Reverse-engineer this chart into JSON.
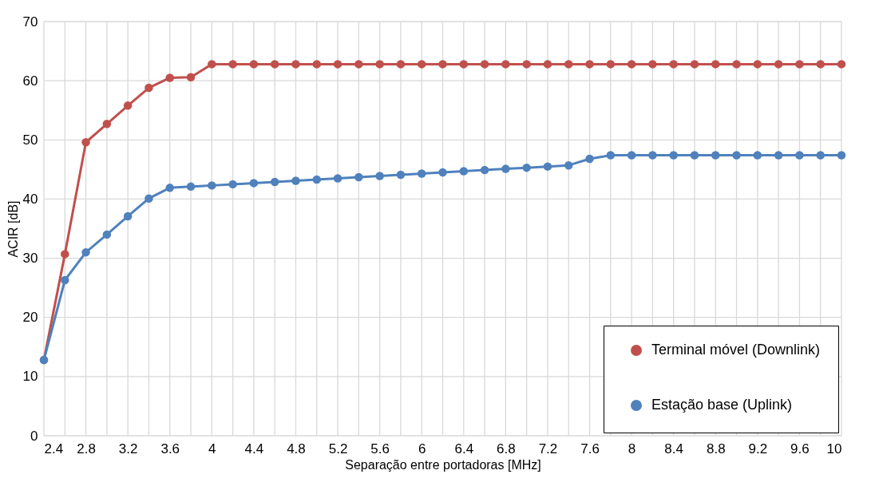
{
  "chart_data": {
    "type": "line",
    "xlabel": "Separação entre portadoras [MHz]",
    "ylabel": "ACIR [dB]",
    "x": [
      2.4,
      2.6,
      2.8,
      3.0,
      3.2,
      3.4,
      3.6,
      3.8,
      4.0,
      4.2,
      4.4,
      4.6,
      4.8,
      5.0,
      5.2,
      5.4,
      5.6,
      5.8,
      6.0,
      6.2,
      6.4,
      6.6,
      6.8,
      7.0,
      7.2,
      7.4,
      7.6,
      7.8,
      8.0,
      8.2,
      8.4,
      8.6,
      8.8,
      9.0,
      9.2,
      9.4,
      9.6,
      9.8,
      10.0
    ],
    "series": [
      {
        "name": "Terminal móvel (Downlink)",
        "color": "#c0504d",
        "values": [
          12.8,
          30.7,
          49.6,
          52.7,
          55.8,
          58.8,
          60.5,
          60.6,
          62.8,
          62.8,
          62.8,
          62.8,
          62.8,
          62.8,
          62.8,
          62.8,
          62.8,
          62.8,
          62.8,
          62.8,
          62.8,
          62.8,
          62.8,
          62.8,
          62.8,
          62.8,
          62.8,
          62.8,
          62.8,
          62.8,
          62.8,
          62.8,
          62.8,
          62.8,
          62.8,
          62.8,
          62.8,
          62.8,
          62.8
        ]
      },
      {
        "name": "Estação base (Uplink)",
        "color": "#4f81bd",
        "values": [
          12.8,
          26.3,
          31.0,
          34.0,
          37.1,
          40.1,
          41.9,
          42.1,
          42.3,
          42.5,
          42.7,
          42.9,
          43.1,
          43.3,
          43.5,
          43.7,
          43.9,
          44.1,
          44.3,
          44.5,
          44.7,
          44.9,
          45.1,
          45.3,
          45.5,
          45.7,
          46.8,
          47.4,
          47.4,
          47.4,
          47.4,
          47.4,
          47.4,
          47.4,
          47.4,
          47.4,
          47.4,
          47.4,
          47.4
        ]
      }
    ],
    "xlim": [
      2.4,
      10
    ],
    "xticks": [
      2.4,
      {
        "value": 2.6,
        "label": null
      },
      2.8,
      {
        "value": 3.0,
        "label": null
      },
      3.2,
      {
        "value": 3.4,
        "label": null
      },
      3.6,
      {
        "value": 3.8,
        "label": null
      },
      4,
      {
        "value": 4.2,
        "label": null
      },
      4.4,
      {
        "value": 4.6,
        "label": null
      },
      4.8,
      {
        "value": 5.0,
        "label": null
      },
      5.2,
      {
        "value": 5.4,
        "label": null
      },
      5.6,
      {
        "value": 5.8,
        "label": null
      },
      6,
      {
        "value": 6.2,
        "label": null
      },
      6.4,
      {
        "value": 6.6,
        "label": null
      },
      6.8,
      {
        "value": 7.0,
        "label": null
      },
      7.2,
      {
        "value": 7.4,
        "label": null
      },
      7.6,
      {
        "value": 7.8,
        "label": null
      },
      8,
      {
        "value": 8.2,
        "label": null
      },
      8.4,
      {
        "value": 8.6,
        "label": null
      },
      8.8,
      {
        "value": 9.0,
        "label": null
      },
      9.2,
      {
        "value": 9.4,
        "label": null
      },
      9.6,
      {
        "value": 9.8,
        "label": null
      },
      10
    ],
    "ylim": [
      0,
      70
    ],
    "yticks": [
      0,
      10,
      20,
      30,
      40,
      50,
      60,
      70
    ],
    "grid": true,
    "legend": "bottom right",
    "marker": "circle",
    "line_style": "solid"
  }
}
